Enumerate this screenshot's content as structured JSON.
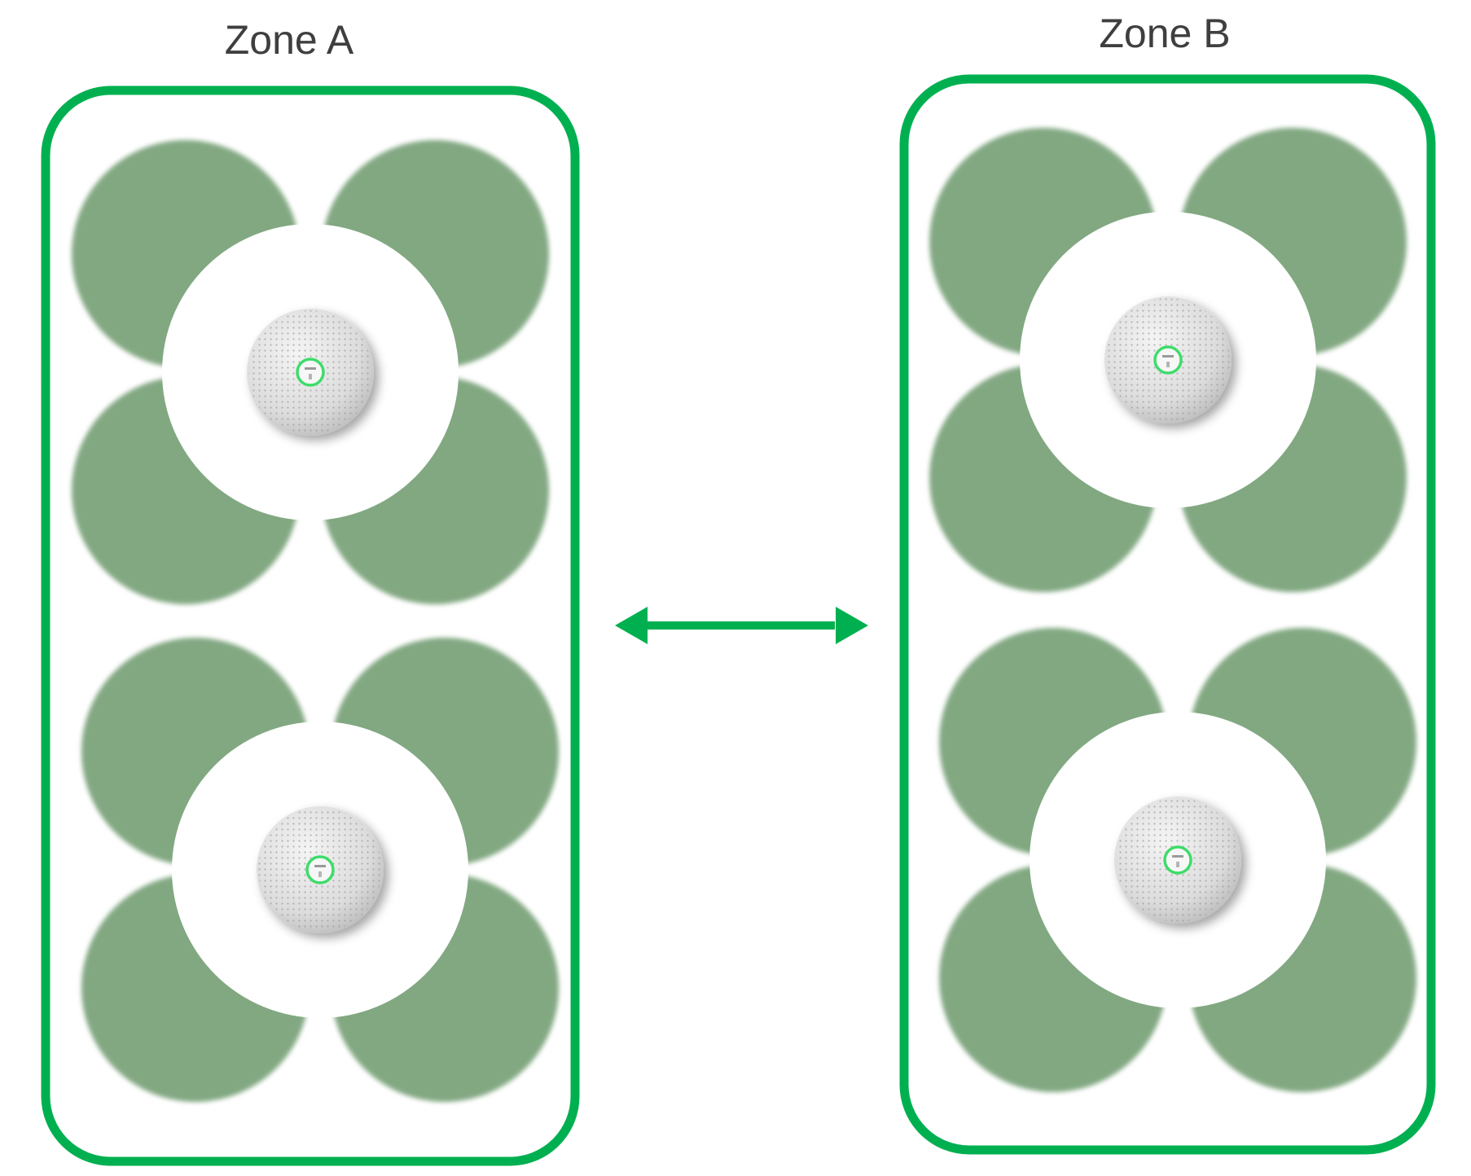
{
  "zones": [
    {
      "title": "Zone A",
      "units": 2,
      "lobes_per_unit": 4
    },
    {
      "title": "Zone B",
      "units": 2,
      "lobes_per_unit": 4
    }
  ],
  "arrow": {
    "direction": "bidirectional"
  },
  "icons": {
    "microphone": "ceiling-microphone-icon",
    "pickup_lobe": "pickup-lobe",
    "arrow": "double-arrow-icon"
  },
  "colors": {
    "zone_border": "#00b050",
    "lobe_fill": "#82a882",
    "arrow": "#00b050",
    "mic_body": "#e9e9e9",
    "mic_ring": "#3ddc6a",
    "title_text": "#3f3f3f"
  }
}
